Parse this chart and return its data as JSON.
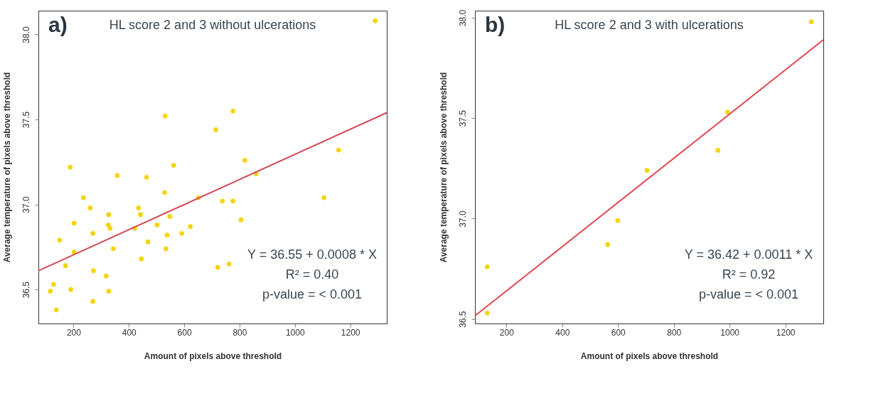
{
  "chart_data": [
    {
      "type": "scatter",
      "title": "HL score 2 and 3 without ulcerations",
      "xlabel": "Amount of pixels above threshold",
      "ylabel": "Average temperature of pixels above threshold",
      "annotations": [
        "a)",
        "Y = 36.55 + 0.0008 * X",
        "R² = 0.40",
        "p-value = < 0.001"
      ],
      "xlim": [
        73,
        1332
      ],
      "ylim": [
        36.3,
        38.14
      ],
      "xticks": [
        200,
        400,
        600,
        800,
        1000,
        1200
      ],
      "yticks": [
        {
          "value": 36.5,
          "label": "36.5"
        },
        {
          "value": 37.0,
          "label": "37.0"
        },
        {
          "value": 37.5,
          "label": "37.5"
        },
        {
          "value": 38.0,
          "label": "38.0"
        }
      ],
      "grid": false,
      "series": [
        {
          "type": "scatter",
          "marker": "circle",
          "color": "#f5d40f",
          "x": [
            531,
            714,
            188,
            562,
            358,
            464,
            529,
            236,
            260,
            435,
            442,
            327,
            548,
            202,
            325,
            332,
            502,
            421,
            622,
            270,
            591,
            538,
            150,
            469,
            344,
            534,
            445,
            202,
            171,
            721,
            272,
            318,
            128,
            116,
            190,
            327,
            270,
            138,
            651,
            1290,
            776,
            819,
            1158,
            860,
            738,
            776,
            1105,
            805,
            762
          ],
          "values": [
            37.52,
            37.44,
            37.22,
            37.23,
            37.17,
            37.16,
            37.07,
            37.04,
            36.98,
            36.98,
            36.94,
            36.94,
            36.93,
            36.89,
            36.88,
            36.86,
            36.88,
            36.86,
            36.87,
            36.83,
            36.83,
            36.82,
            36.79,
            36.78,
            36.74,
            36.74,
            36.68,
            36.72,
            36.64,
            36.63,
            36.61,
            36.58,
            36.53,
            36.49,
            36.5,
            36.49,
            36.43,
            36.38,
            37.04,
            38.08,
            37.55,
            37.26,
            37.32,
            37.18,
            37.02,
            37.02,
            37.04,
            36.91,
            36.65
          ]
        },
        {
          "type": "line",
          "marker": "none",
          "color": "#d04a55",
          "x": [
            73,
            1332
          ],
          "values": [
            36.61,
            37.54
          ]
        }
      ]
    },
    {
      "type": "scatter",
      "title": "HL score 2 and 3 with ulcerations",
      "xlabel": "Amount of pixels above threshold",
      "ylabel": "Average temperature of pixels above threshold",
      "annotations": [
        "b)",
        "Y = 36.42 + 0.0011 * X",
        "R² = 0.92",
        "p-value = < 0.001"
      ],
      "xlim": [
        87,
        1336
      ],
      "ylim": [
        36.478,
        38.035
      ],
      "xticks": [
        200,
        400,
        600,
        800,
        1000,
        1200
      ],
      "yticks": [
        {
          "value": 36.5,
          "label": "36.5"
        },
        {
          "value": 37.0,
          "label": "37.0"
        },
        {
          "value": 37.5,
          "label": "37.5"
        },
        {
          "value": 38.0,
          "label": "38.0"
        }
      ],
      "grid": false,
      "series": [
        {
          "type": "scatter",
          "marker": "circle",
          "color": "#f5d40f",
          "x": [
            1293,
            993,
            958,
            704,
            599,
            563,
            131,
            131
          ],
          "values": [
            37.98,
            37.53,
            37.34,
            37.24,
            36.99,
            36.87,
            36.76,
            36.53
          ]
        },
        {
          "type": "line",
          "marker": "none",
          "color": "#e0454f",
          "x": [
            87,
            1336
          ],
          "values": [
            36.516,
            37.89
          ]
        }
      ]
    }
  ]
}
